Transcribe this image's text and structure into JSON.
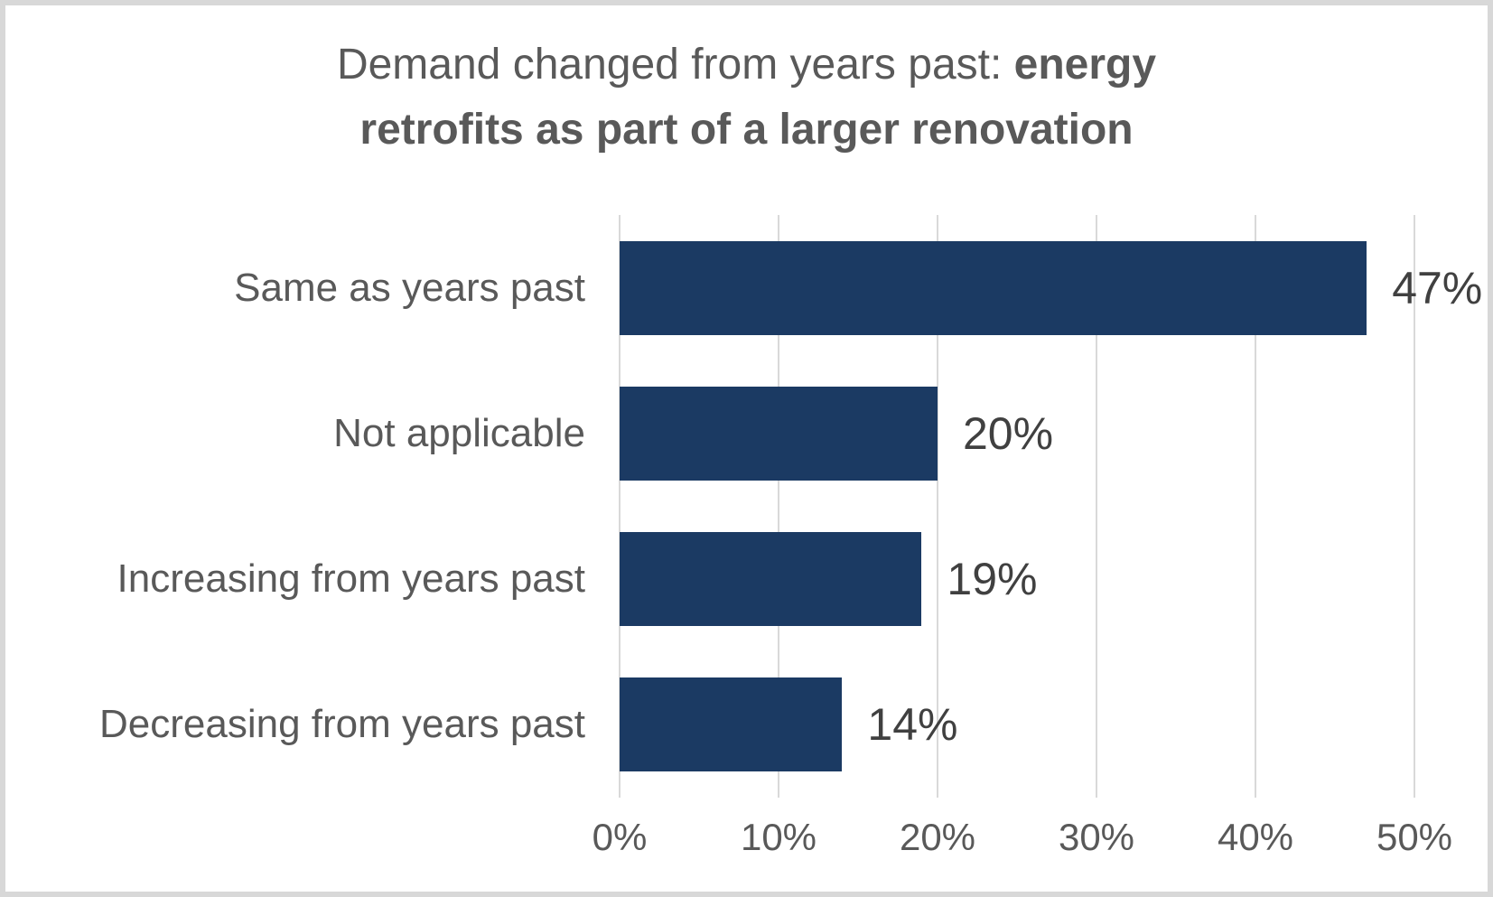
{
  "title": {
    "line1_regular": "Demand changed from years past: ",
    "line1_bold": "energy",
    "line2_bold": "retrofits as part of a larger renovation"
  },
  "chart_data": {
    "type": "bar",
    "orientation": "horizontal",
    "title": "Demand changed from years past: energy retrofits as part of a larger renovation",
    "categories": [
      "Same as years past",
      "Not applicable",
      "Increasing from years past",
      "Decreasing from years past"
    ],
    "values": [
      47,
      20,
      19,
      14
    ],
    "data_labels": [
      "47%",
      "20%",
      "19%",
      "14%"
    ],
    "x_ticks": [
      "0%",
      "10%",
      "20%",
      "30%",
      "40%",
      "50%"
    ],
    "xlim": [
      0,
      50
    ],
    "xlabel": "",
    "ylabel": "",
    "grid": "vertical",
    "legend": "none",
    "colors": {
      "bar": "#1b3a63",
      "title_text": "#595959",
      "category_label": "#595959",
      "data_label": "#404040",
      "axis_label": "#595959",
      "gridline": "#d9d9d9",
      "frame_border": "#d8d8d8",
      "background": "#ffffff"
    }
  }
}
